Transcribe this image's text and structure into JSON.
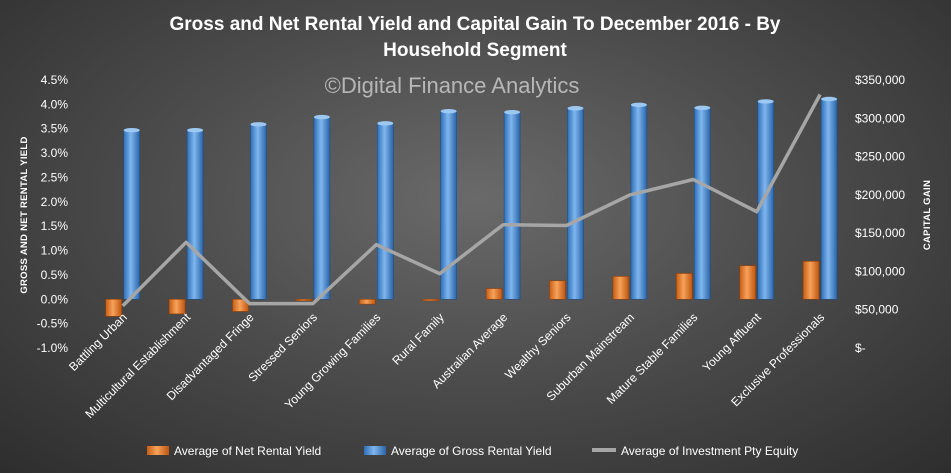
{
  "chart_data": {
    "type": "bar",
    "title_line1": "Gross and Net Rental Yield and Capital Gain To December 2016 -  By",
    "title_line2": "Household Segment",
    "watermark": "©Digital Finance Analytics",
    "y_left_label": "GROSS AND NET RENTAL YIELD",
    "y_right_label": "CAPITAL GAIN",
    "ylim_left": [
      -0.01,
      0.045
    ],
    "ylim_right": [
      0,
      350000
    ],
    "left_ticks": [
      "-1.0%",
      "-0.5%",
      "0.0%",
      "0.5%",
      "1.0%",
      "1.5%",
      "2.0%",
      "2.5%",
      "3.0%",
      "3.5%",
      "4.0%",
      "4.5%"
    ],
    "right_ticks": [
      "$-",
      "$50,000",
      "$100,000",
      "$150,000",
      "$200,000",
      "$250,000",
      "$300,000",
      "$350,000"
    ],
    "categories": [
      "Battling Urban",
      "Multicultural Establishment",
      "Disadvantaged Fringe",
      "Stressed Seniors",
      "Young Growing Families",
      "Rural Family",
      "Australian Average",
      "Wealthy Seniors",
      "Suburban Mainstream",
      "Mature Stable Families",
      "Young Affluent",
      "Exclusive Professionals"
    ],
    "series": [
      {
        "name": "Average of Net Rental Yield",
        "axis": "left",
        "kind": "bar",
        "color": "#e8782a",
        "values": [
          -0.0035,
          -0.003,
          -0.0025,
          0.0,
          -0.001,
          -0.0002,
          0.0022,
          0.0038,
          0.0047,
          0.0053,
          0.0069,
          0.0078
        ]
      },
      {
        "name": "Average of Gross Rental Yield",
        "axis": "left",
        "kind": "bar",
        "color": "#4a90d9",
        "values": [
          0.0347,
          0.0347,
          0.0359,
          0.0374,
          0.0361,
          0.0386,
          0.0384,
          0.0392,
          0.0399,
          0.0393,
          0.0406,
          0.0411
        ]
      },
      {
        "name": "Average of Investment Pty Equity",
        "axis": "right",
        "kind": "line",
        "color": "#a6a6a6",
        "values": [
          55000,
          138000,
          58000,
          58000,
          135000,
          97000,
          161000,
          160000,
          200000,
          220000,
          178000,
          331000
        ]
      }
    ],
    "legend_position": "bottom",
    "grid": false
  }
}
